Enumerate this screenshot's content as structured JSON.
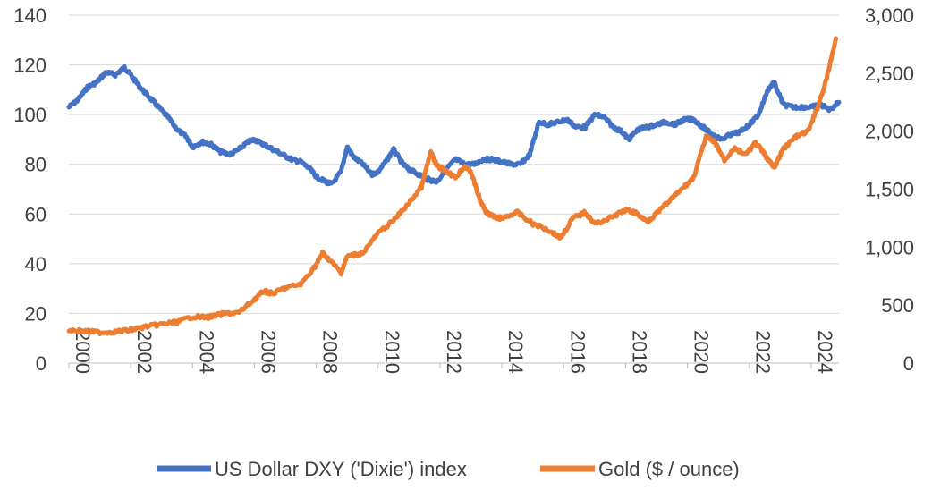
{
  "chart_data": {
    "type": "line",
    "title": "",
    "xlabel": "",
    "ylabel_left": "",
    "ylabel_right": "",
    "x_ticks": [
      "2000",
      "2002",
      "2004",
      "2006",
      "2008",
      "2010",
      "2012",
      "2014",
      "2016",
      "2018",
      "2020",
      "2022",
      "2024"
    ],
    "xlim": [
      2000,
      2024.9
    ],
    "ylim_left": [
      0,
      140
    ],
    "y_ticks_left": [
      "0",
      "20",
      "40",
      "60",
      "80",
      "100",
      "120",
      "140"
    ],
    "ylim_right": [
      0,
      3000
    ],
    "y_ticks_right": [
      "0",
      "500",
      "1,000",
      "1,500",
      "2,000",
      "2,500",
      "3,000"
    ],
    "grid": true,
    "legend_position": "bottom",
    "series": [
      {
        "name": "US Dollar DXY ('Dixie') index",
        "axis": "left",
        "color": "#4472c4",
        "x": [
          2000.0,
          2000.3,
          2000.6,
          2000.9,
          2001.2,
          2001.5,
          2001.8,
          2002.0,
          2002.3,
          2002.6,
          2002.9,
          2003.2,
          2003.5,
          2003.8,
          2004.0,
          2004.3,
          2004.6,
          2004.9,
          2005.2,
          2005.5,
          2005.8,
          2006.0,
          2006.3,
          2006.6,
          2006.9,
          2007.2,
          2007.5,
          2007.8,
          2008.0,
          2008.3,
          2008.5,
          2008.8,
          2009.0,
          2009.2,
          2009.5,
          2009.8,
          2010.0,
          2010.3,
          2010.5,
          2010.8,
          2011.0,
          2011.3,
          2011.6,
          2011.9,
          2012.2,
          2012.5,
          2012.8,
          2013.1,
          2013.4,
          2013.7,
          2014.0,
          2014.3,
          2014.6,
          2014.9,
          2015.2,
          2015.5,
          2015.8,
          2016.1,
          2016.4,
          2016.7,
          2017.0,
          2017.3,
          2017.6,
          2017.9,
          2018.1,
          2018.4,
          2018.7,
          2019.0,
          2019.3,
          2019.6,
          2019.9,
          2020.2,
          2020.5,
          2020.8,
          2021.1,
          2021.4,
          2021.7,
          2022.0,
          2022.3,
          2022.6,
          2022.8,
          2023.1,
          2023.4,
          2023.7,
          2024.0,
          2024.3,
          2024.6,
          2024.9
        ],
        "values": [
          103,
          106,
          111,
          113,
          117,
          116,
          119,
          116,
          111,
          107,
          103,
          99,
          94,
          91,
          87,
          89,
          88,
          85,
          84,
          86,
          89,
          90,
          88,
          86,
          84,
          82,
          81,
          78,
          75,
          73,
          72,
          77,
          87,
          83,
          80,
          76,
          77,
          82,
          86,
          80,
          78,
          76,
          74,
          73,
          78,
          82,
          80,
          80,
          82,
          82,
          81,
          80,
          80,
          84,
          97,
          96,
          97,
          98,
          95,
          95,
          100,
          99,
          95,
          93,
          90,
          94,
          95,
          96,
          97,
          96,
          98,
          98,
          95,
          92,
          90,
          92,
          93,
          96,
          100,
          110,
          113,
          104,
          103,
          103,
          103,
          104,
          102,
          105
        ]
      },
      {
        "name": "Gold ($ / ounce)",
        "axis": "right",
        "color": "#ed7d31",
        "x": [
          2000.0,
          2000.5,
          2001.0,
          2001.5,
          2002.0,
          2002.5,
          2003.0,
          2003.5,
          2004.0,
          2004.5,
          2005.0,
          2005.5,
          2006.0,
          2006.3,
          2006.6,
          2007.0,
          2007.5,
          2008.0,
          2008.2,
          2008.5,
          2008.8,
          2009.0,
          2009.5,
          2010.0,
          2010.5,
          2011.0,
          2011.4,
          2011.7,
          2011.9,
          2012.2,
          2012.5,
          2012.8,
          2013.0,
          2013.3,
          2013.5,
          2013.8,
          2014.0,
          2014.5,
          2015.0,
          2015.5,
          2015.9,
          2016.3,
          2016.7,
          2017.0,
          2017.5,
          2018.0,
          2018.3,
          2018.7,
          2019.0,
          2019.5,
          2019.9,
          2020.2,
          2020.6,
          2020.9,
          2021.2,
          2021.5,
          2021.9,
          2022.2,
          2022.5,
          2022.8,
          2023.1,
          2023.5,
          2023.9,
          2024.2,
          2024.5,
          2024.8
        ],
        "values": [
          285,
          275,
          265,
          270,
          285,
          315,
          335,
          355,
          400,
          395,
          425,
          435,
          550,
          620,
          600,
          650,
          680,
          850,
          950,
          870,
          780,
          920,
          950,
          1120,
          1230,
          1380,
          1520,
          1820,
          1700,
          1660,
          1600,
          1700,
          1650,
          1400,
          1300,
          1250,
          1250,
          1300,
          1200,
          1150,
          1080,
          1250,
          1300,
          1200,
          1250,
          1320,
          1300,
          1220,
          1290,
          1420,
          1520,
          1600,
          1950,
          1900,
          1750,
          1850,
          1800,
          1900,
          1800,
          1680,
          1850,
          1950,
          2000,
          2200,
          2450,
          2800
        ]
      }
    ]
  }
}
